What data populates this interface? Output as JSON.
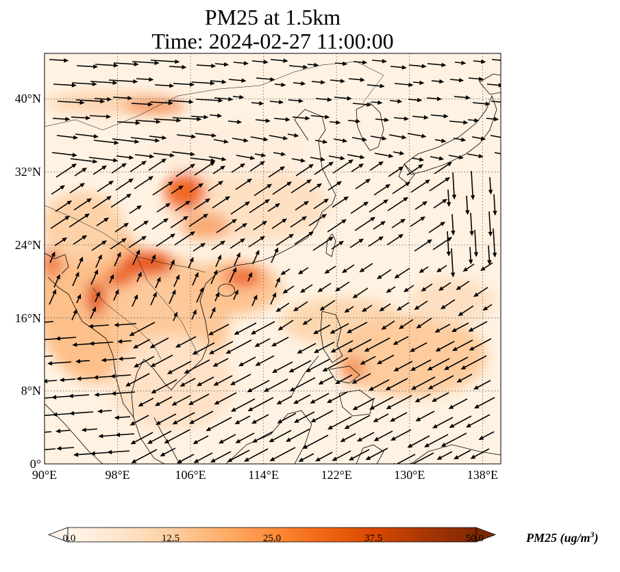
{
  "title": {
    "line1": "PM25 at 1.5km",
    "line2": "Time: 2024-02-27 11:00:00"
  },
  "map": {
    "extent_lon": [
      90,
      140
    ],
    "extent_lat": [
      0,
      45
    ],
    "lat_ticks": [
      "0°",
      "8°N",
      "16°N",
      "24°N",
      "32°N",
      "40°N"
    ],
    "lon_ticks": [
      "90°E",
      "98°E",
      "106°E",
      "114°E",
      "122°E",
      "130°E",
      "138°E"
    ],
    "gridlines": true,
    "gridline_style": "dotted",
    "vector_field": "wind arrows",
    "colormap": [
      "#fff5eb",
      "#fee6ce",
      "#fdd0a2",
      "#fdae6b",
      "#fd8d3c",
      "#f16913",
      "#d94801",
      "#a63603",
      "#7f2704"
    ]
  },
  "colorbar": {
    "ticks": [
      "0.0",
      "12.5",
      "25.0",
      "37.5",
      "50.0"
    ],
    "range": [
      0,
      50
    ],
    "extend": "both",
    "title": "PM25 (ug/m",
    "title_sup": "3",
    "title_end": ")"
  }
}
